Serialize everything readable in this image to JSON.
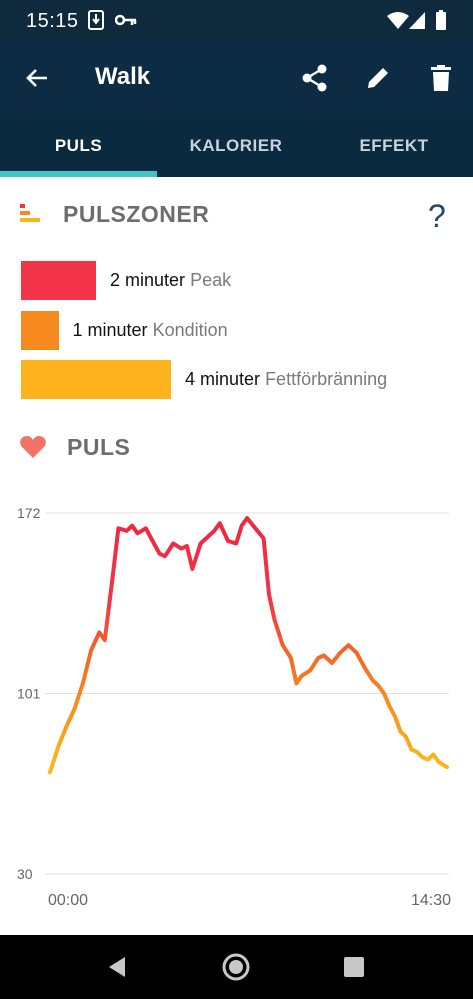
{
  "status_bar": {
    "time": "15:15"
  },
  "app_bar": {
    "title": "Walk"
  },
  "tabs": [
    {
      "label": "PULS"
    },
    {
      "label": "KALORIER"
    },
    {
      "label": "EFFEKT"
    }
  ],
  "zones_section": {
    "title": "PULSZONER",
    "help": "?",
    "zones": [
      {
        "minutes": "2 minuter",
        "label": "Peak",
        "value": 2,
        "color": "#f23548"
      },
      {
        "minutes": "1 minuter",
        "label": "Kondition",
        "value": 1,
        "color": "#f68a1f"
      },
      {
        "minutes": "4 minuter",
        "label": "Fettförbränning",
        "value": 4,
        "color": "#fdb31b"
      }
    ]
  },
  "puls_section": {
    "title": "PULS"
  },
  "chart_data": {
    "type": "line",
    "x_tick_labels": [
      "00:00",
      "14:30"
    ],
    "y_tick_labels": [
      "172",
      "101",
      "30"
    ],
    "ylim": [
      30,
      172
    ],
    "grid": true,
    "series": [
      {
        "x": [
          0,
          0.3,
          0.6,
          0.9,
          1.2,
          1.5,
          1.8,
          2.0,
          2.3,
          2.5,
          2.8,
          3.0,
          3.2,
          3.5,
          3.8,
          4.0,
          4.2,
          4.5,
          4.8,
          5.0,
          5.2,
          5.5,
          5.8,
          6.0,
          6.2,
          6.5,
          6.8,
          7.0,
          7.2,
          7.5,
          7.8,
          8.0,
          8.2,
          8.5,
          8.8,
          9.0,
          9.2,
          9.5,
          9.8,
          10.0,
          10.3,
          10.6,
          10.9,
          11.2,
          11.5,
          11.8,
          12.0,
          12.2,
          12.4,
          12.6,
          12.8,
          13.0,
          13.2,
          13.4,
          13.6,
          13.8,
          14.0,
          14.2,
          14.5
        ],
        "y": [
          70,
          80,
          88,
          95,
          105,
          118,
          125,
          122,
          148,
          166,
          165,
          167,
          164,
          166,
          160,
          156,
          155,
          160,
          158,
          159,
          150,
          160,
          163,
          165,
          168,
          161,
          160,
          167,
          170,
          166,
          162,
          140,
          130,
          120,
          115,
          105,
          108,
          110,
          115,
          116,
          113,
          117,
          120,
          117,
          111,
          106,
          104,
          101,
          96,
          92,
          86,
          84,
          79,
          78,
          76,
          75,
          77,
          74,
          72
        ]
      }
    ]
  }
}
